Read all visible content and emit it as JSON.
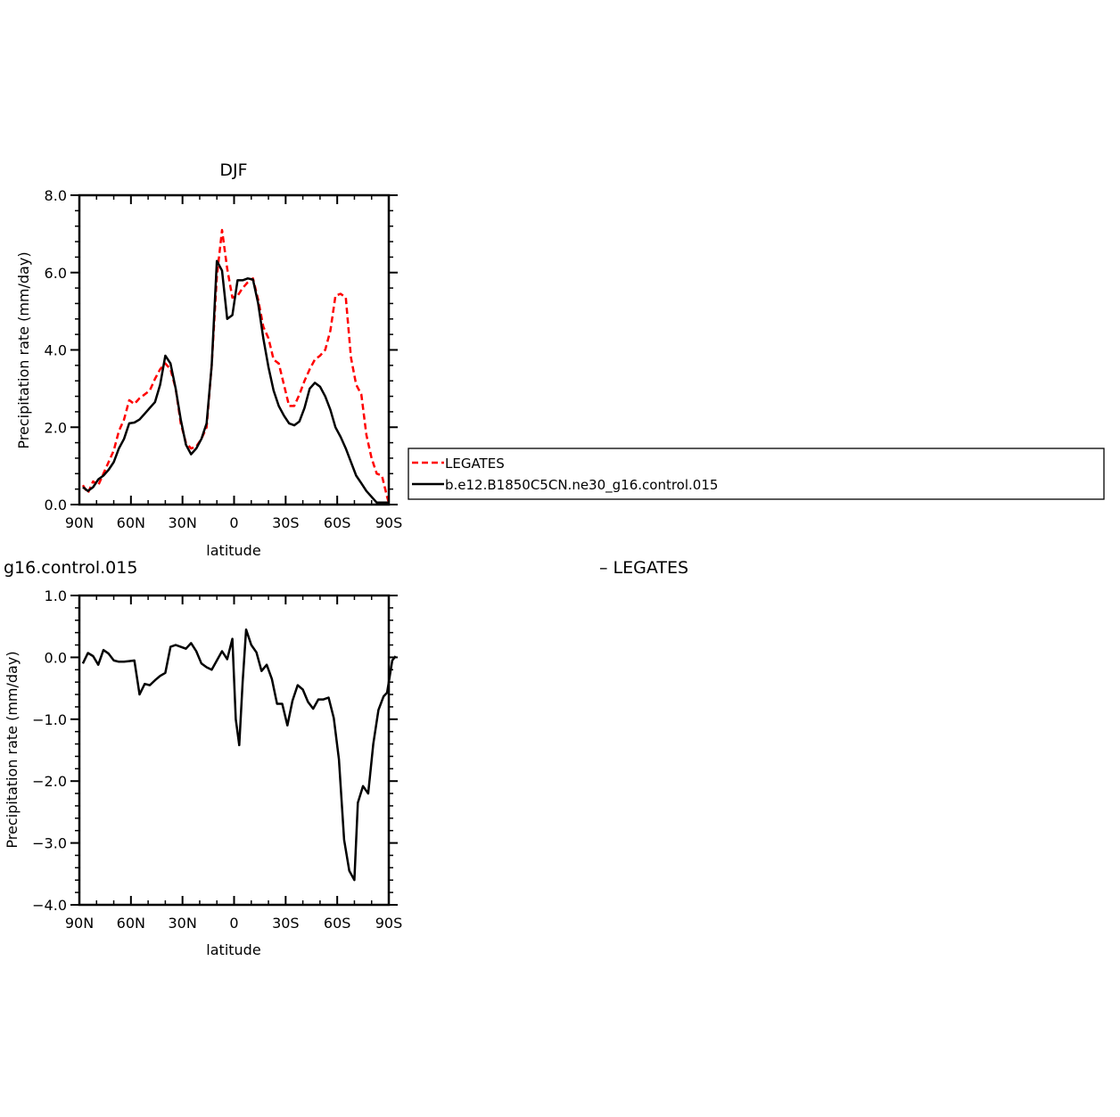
{
  "chart_data": [
    {
      "type": "line",
      "title": "DJF",
      "xlabel": "latitude",
      "ylabel": "Precipitation rate (mm/day)",
      "xlim": [
        90,
        -90
      ],
      "ylim": [
        0,
        8
      ],
      "x_ticks": [
        {
          "value": 90,
          "label": "90N"
        },
        {
          "value": 60,
          "label": "60N"
        },
        {
          "value": 30,
          "label": "30N"
        },
        {
          "value": 0,
          "label": "0"
        },
        {
          "value": -30,
          "label": "30S"
        },
        {
          "value": -60,
          "label": "60S"
        },
        {
          "value": -90,
          "label": "90S"
        }
      ],
      "y_ticks": [
        {
          "value": 0,
          "label": "0.0"
        },
        {
          "value": 2,
          "label": "2.0"
        },
        {
          "value": 4,
          "label": "4.0"
        },
        {
          "value": 6,
          "label": "6.0"
        },
        {
          "value": 8,
          "label": "8.0"
        }
      ],
      "grid": false,
      "legend_position": "right",
      "series": [
        {
          "name": "LEGATES",
          "color": "#ff0000",
          "style": "dashed",
          "points": [
            [
              88,
              0.5
            ],
            [
              85,
              0.3
            ],
            [
              82,
              0.6
            ],
            [
              79,
              0.5
            ],
            [
              76,
              0.8
            ],
            [
              73,
              1.1
            ],
            [
              70,
              1.4
            ],
            [
              67,
              1.9
            ],
            [
              64,
              2.2
            ],
            [
              61,
              2.7
            ],
            [
              58,
              2.6
            ],
            [
              55,
              2.75
            ],
            [
              52,
              2.85
            ],
            [
              49,
              2.95
            ],
            [
              46,
              3.25
            ],
            [
              43,
              3.5
            ],
            [
              40,
              3.65
            ],
            [
              37,
              3.5
            ],
            [
              34,
              3.0
            ],
            [
              31,
              2.1
            ],
            [
              28,
              1.6
            ],
            [
              25,
              1.45
            ],
            [
              22,
              1.5
            ],
            [
              19,
              1.7
            ],
            [
              16,
              2.0
            ],
            [
              13,
              3.6
            ],
            [
              10,
              5.9
            ],
            [
              7,
              7.1
            ],
            [
              4,
              6.1
            ],
            [
              1,
              5.35
            ],
            [
              -2,
              5.4
            ],
            [
              -5,
              5.6
            ],
            [
              -8,
              5.75
            ],
            [
              -11,
              5.85
            ],
            [
              -14,
              5.3
            ],
            [
              -17,
              4.6
            ],
            [
              -20,
              4.3
            ],
            [
              -23,
              3.75
            ],
            [
              -26,
              3.65
            ],
            [
              -29,
              3.1
            ],
            [
              -32,
              2.55
            ],
            [
              -35,
              2.55
            ],
            [
              -38,
              2.85
            ],
            [
              -41,
              3.2
            ],
            [
              -44,
              3.5
            ],
            [
              -47,
              3.75
            ],
            [
              -50,
              3.85
            ],
            [
              -53,
              4.0
            ],
            [
              -56,
              4.5
            ],
            [
              -59,
              5.4
            ],
            [
              -62,
              5.45
            ],
            [
              -65,
              5.35
            ],
            [
              -68,
              3.8
            ],
            [
              -71,
              3.1
            ],
            [
              -74,
              2.85
            ],
            [
              -77,
              1.8
            ],
            [
              -80,
              1.2
            ],
            [
              -83,
              0.8
            ],
            [
              -86,
              0.75
            ],
            [
              -89,
              0.2
            ],
            [
              -90,
              0.05
            ]
          ]
        },
        {
          "name": "b.e12.B1850C5CN.ne30_g16.control.015",
          "color": "#000000",
          "style": "solid",
          "points": [
            [
              88,
              0.45
            ],
            [
              85,
              0.35
            ],
            [
              82,
              0.45
            ],
            [
              79,
              0.65
            ],
            [
              76,
              0.75
            ],
            [
              73,
              0.9
            ],
            [
              70,
              1.1
            ],
            [
              67,
              1.45
            ],
            [
              64,
              1.7
            ],
            [
              61,
              2.1
            ],
            [
              58,
              2.12
            ],
            [
              55,
              2.2
            ],
            [
              52,
              2.35
            ],
            [
              49,
              2.5
            ],
            [
              46,
              2.65
            ],
            [
              43,
              3.1
            ],
            [
              40,
              3.85
            ],
            [
              37,
              3.65
            ],
            [
              34,
              3.0
            ],
            [
              31,
              2.2
            ],
            [
              28,
              1.55
            ],
            [
              25,
              1.3
            ],
            [
              22,
              1.45
            ],
            [
              19,
              1.7
            ],
            [
              16,
              2.1
            ],
            [
              13,
              3.6
            ],
            [
              10,
              6.3
            ],
            [
              7,
              6.05
            ],
            [
              4,
              4.8
            ],
            [
              1,
              4.9
            ],
            [
              -2,
              5.8
            ],
            [
              -5,
              5.8
            ],
            [
              -8,
              5.85
            ],
            [
              -11,
              5.82
            ],
            [
              -14,
              5.2
            ],
            [
              -17,
              4.3
            ],
            [
              -20,
              3.55
            ],
            [
              -23,
              2.95
            ],
            [
              -26,
              2.55
            ],
            [
              -29,
              2.3
            ],
            [
              -32,
              2.1
            ],
            [
              -35,
              2.05
            ],
            [
              -38,
              2.15
            ],
            [
              -41,
              2.5
            ],
            [
              -44,
              3.0
            ],
            [
              -47,
              3.15
            ],
            [
              -50,
              3.05
            ],
            [
              -53,
              2.8
            ],
            [
              -56,
              2.45
            ],
            [
              -59,
              2.0
            ],
            [
              -62,
              1.75
            ],
            [
              -65,
              1.45
            ],
            [
              -68,
              1.1
            ],
            [
              -71,
              0.75
            ],
            [
              -74,
              0.55
            ],
            [
              -77,
              0.35
            ],
            [
              -80,
              0.2
            ],
            [
              -83,
              0.05
            ],
            [
              -86,
              0.05
            ],
            [
              -89,
              0.05
            ],
            [
              -90,
              0.0
            ]
          ]
        }
      ]
    },
    {
      "type": "line",
      "title": "g16.control.015",
      "title_right": "– LEGATES",
      "xlabel": "latitude",
      "ylabel": "Precipitation rate (mm/day)",
      "xlim": [
        90,
        -90
      ],
      "ylim": [
        -4,
        1
      ],
      "x_ticks": [
        {
          "value": 90,
          "label": "90N"
        },
        {
          "value": 60,
          "label": "60N"
        },
        {
          "value": 30,
          "label": "30N"
        },
        {
          "value": 0,
          "label": "0"
        },
        {
          "value": -30,
          "label": "30S"
        },
        {
          "value": -60,
          "label": "60S"
        },
        {
          "value": -90,
          "label": "90S"
        }
      ],
      "y_ticks": [
        {
          "value": -4,
          "label": "−4.0"
        },
        {
          "value": -3,
          "label": "−3.0"
        },
        {
          "value": -2,
          "label": "−2.0"
        },
        {
          "value": -1,
          "label": "−1.0"
        },
        {
          "value": 0,
          "label": "0.0"
        },
        {
          "value": 1,
          "label": "1.0"
        }
      ],
      "grid": false,
      "series": [
        {
          "color": "#000000",
          "style": "solid",
          "points": [
            [
              88,
              -0.1
            ],
            [
              85,
              0.07
            ],
            [
              82,
              0.02
            ],
            [
              79,
              -0.12
            ],
            [
              76,
              0.12
            ],
            [
              73,
              0.06
            ],
            [
              70,
              -0.05
            ],
            [
              67,
              -0.07
            ],
            [
              64,
              -0.07
            ],
            [
              61,
              -0.06
            ],
            [
              58,
              -0.05
            ],
            [
              55,
              -0.6
            ],
            [
              52,
              -0.43
            ],
            [
              49,
              -0.45
            ],
            [
              46,
              -0.37
            ],
            [
              43,
              -0.3
            ],
            [
              40,
              -0.25
            ],
            [
              37,
              0.17
            ],
            [
              34,
              0.2
            ],
            [
              31,
              0.17
            ],
            [
              28,
              0.14
            ],
            [
              25,
              0.23
            ],
            [
              22,
              0.1
            ],
            [
              19,
              -0.1
            ],
            [
              16,
              -0.16
            ],
            [
              13,
              -0.2
            ],
            [
              10,
              -0.05
            ],
            [
              7,
              0.1
            ],
            [
              4,
              -0.03
            ],
            [
              1,
              0.3
            ],
            [
              -1,
              -1.0
            ],
            [
              -3,
              -1.42
            ],
            [
              -5,
              -0.4
            ],
            [
              -7,
              0.45
            ],
            [
              -10,
              0.2
            ],
            [
              -13,
              0.08
            ],
            [
              -16,
              -0.22
            ],
            [
              -19,
              -0.12
            ],
            [
              -22,
              -0.35
            ],
            [
              -25,
              -0.75
            ],
            [
              -28,
              -0.75
            ],
            [
              -31,
              -1.1
            ],
            [
              -34,
              -0.7
            ],
            [
              -37,
              -0.45
            ],
            [
              -40,
              -0.52
            ],
            [
              -43,
              -0.72
            ],
            [
              -46,
              -0.83
            ],
            [
              -49,
              -0.68
            ],
            [
              -52,
              -0.68
            ],
            [
              -55,
              -0.65
            ],
            [
              -58,
              -0.98
            ],
            [
              -61,
              -1.65
            ],
            [
              -64,
              -2.95
            ],
            [
              -67,
              -3.45
            ],
            [
              -70,
              -3.6
            ],
            [
              -72,
              -2.35
            ],
            [
              -75,
              -2.08
            ],
            [
              -78,
              -2.2
            ],
            [
              -81,
              -1.4
            ],
            [
              -84,
              -0.85
            ],
            [
              -87,
              -0.63
            ],
            [
              -89,
              -0.57
            ],
            [
              -92,
              -0.05
            ],
            [
              -94,
              0.02
            ]
          ]
        }
      ]
    }
  ]
}
